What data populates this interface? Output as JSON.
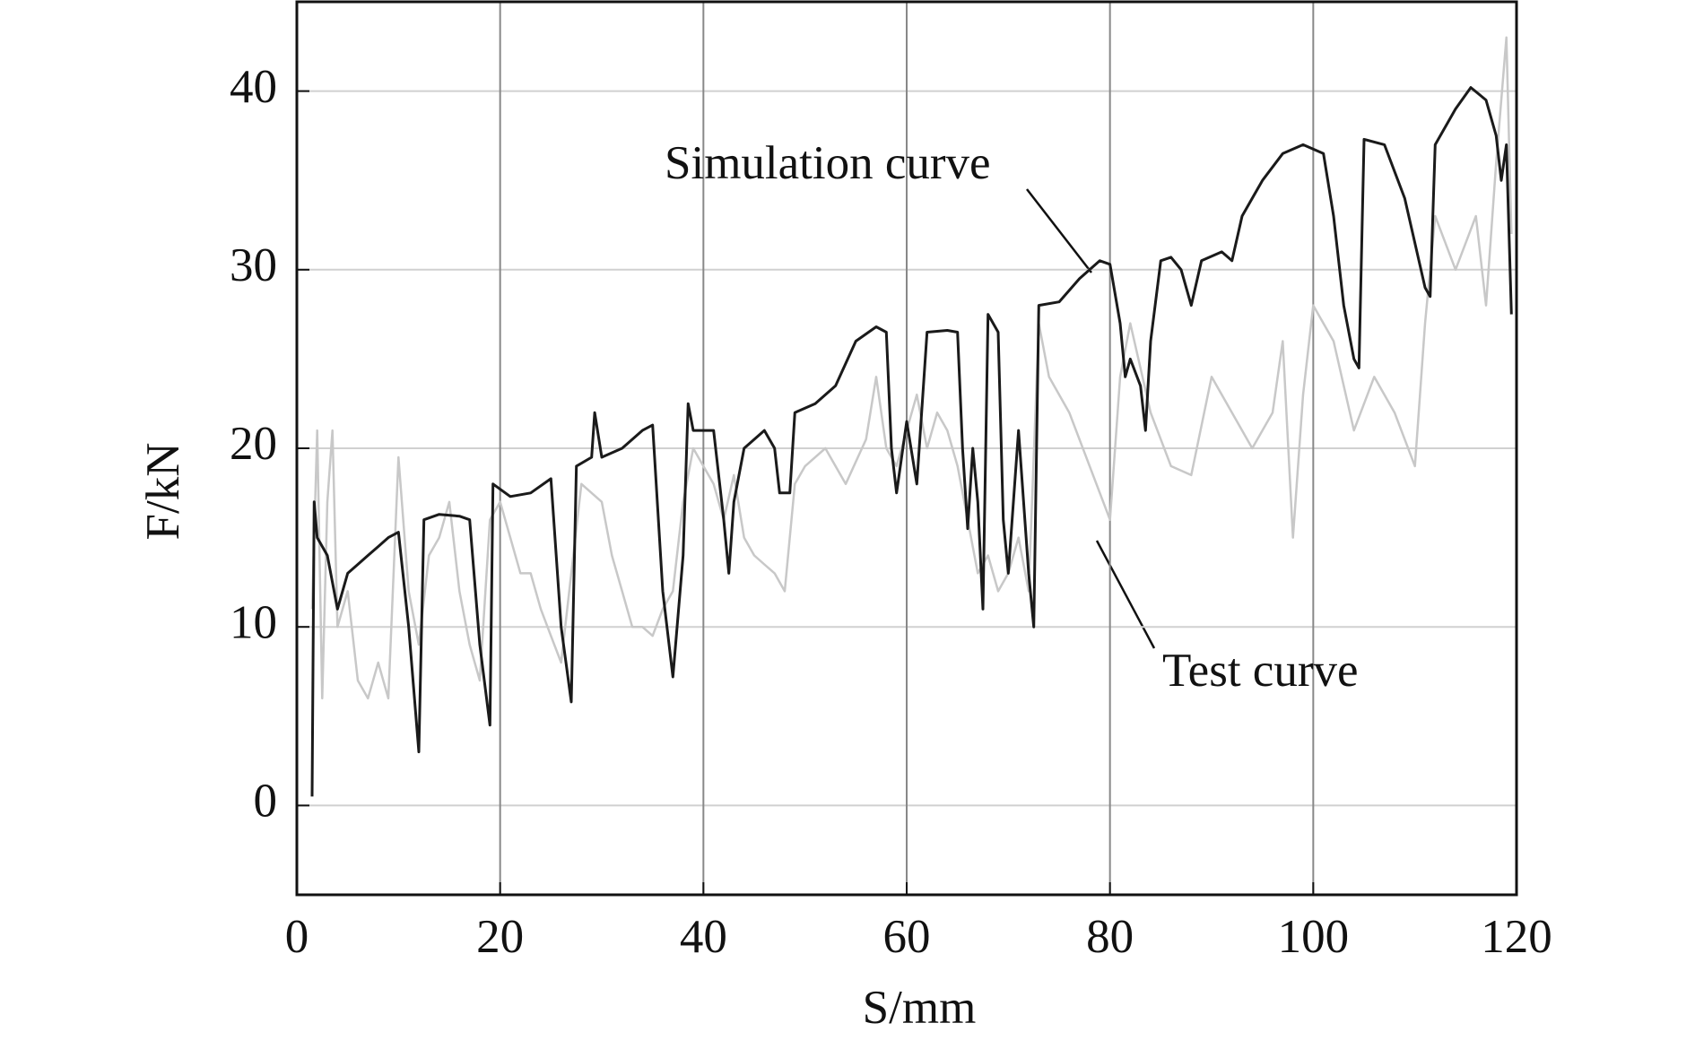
{
  "chart_data": {
    "type": "line",
    "xlabel": "S/mm",
    "ylabel": "F/kN",
    "xlim": [
      0,
      120
    ],
    "ylim": [
      -5,
      45
    ],
    "xticks": [
      0,
      20,
      40,
      60,
      80,
      100,
      120
    ],
    "yticks": [
      0,
      10,
      20,
      30,
      40
    ],
    "grid": true,
    "annotations": [
      {
        "text": "Simulation curve"
      },
      {
        "text": "Test curve"
      }
    ],
    "series": [
      {
        "name": "Test curve",
        "color": "#c8c8c8",
        "x": [
          1.5,
          2,
          2.5,
          3,
          3.5,
          4,
          5,
          6,
          7,
          8,
          9,
          10,
          11,
          12,
          13,
          14,
          15,
          16,
          17,
          18,
          19,
          20,
          21,
          22,
          23,
          24,
          25,
          26,
          27,
          28,
          30,
          31,
          32,
          33,
          34,
          35,
          36,
          37,
          38,
          39,
          40,
          41,
          42,
          43,
          44,
          45,
          46,
          47,
          48,
          49,
          50,
          52,
          54,
          56,
          57,
          58,
          59,
          60,
          61,
          62,
          63,
          64,
          65,
          66,
          67,
          68,
          69,
          70,
          71,
          72,
          73,
          74,
          76,
          78,
          80,
          81,
          82,
          84,
          86,
          88,
          90,
          92,
          94,
          96,
          97,
          98,
          99,
          100,
          102,
          104,
          106,
          108,
          110,
          111,
          112,
          114,
          116,
          117,
          118,
          119,
          119.5
        ],
        "values": [
          11,
          21,
          6,
          17,
          21,
          10,
          12,
          7,
          6,
          8,
          6,
          19.5,
          12,
          9,
          14,
          15,
          17,
          12,
          9,
          7,
          16,
          17,
          15,
          13,
          13,
          11,
          9.5,
          8,
          13,
          18,
          17,
          14,
          12,
          10,
          10,
          9.5,
          11,
          12,
          17,
          20,
          19,
          18,
          16,
          18.5,
          15,
          14,
          13.5,
          13,
          12,
          18,
          19,
          20,
          18,
          20.5,
          24,
          20,
          19,
          21,
          23,
          20,
          22,
          21,
          19,
          16,
          13,
          14,
          12,
          13,
          15,
          12,
          27,
          24,
          22,
          19,
          16,
          24,
          27,
          22,
          19,
          18.5,
          24,
          22,
          20,
          22,
          26,
          15,
          23,
          28,
          26,
          21,
          24,
          22,
          19,
          27,
          33,
          30,
          33,
          28,
          36,
          43,
          32
        ]
      },
      {
        "name": "Simulation curve",
        "color": "#1a1a1a",
        "x": [
          1.5,
          1.7,
          2,
          3,
          4,
          5,
          6,
          7,
          8,
          9,
          10,
          11,
          12,
          12.5,
          14,
          16,
          17,
          18,
          19,
          19.3,
          21,
          23,
          25,
          26,
          27,
          27.5,
          29,
          29.3,
          30,
          32,
          34,
          35,
          36,
          37,
          38,
          38.5,
          39,
          41,
          42,
          42.5,
          43,
          44,
          46,
          47,
          47.5,
          48.5,
          49,
          51,
          53,
          55,
          57,
          58,
          58.5,
          59,
          60,
          61,
          62,
          64,
          65,
          65.5,
          66,
          66.5,
          67,
          67.5,
          68,
          69,
          69.5,
          70,
          71,
          72,
          72.5,
          73,
          75,
          77,
          79,
          80,
          81,
          81.5,
          82,
          83,
          83.5,
          84,
          85,
          86,
          87,
          88,
          89,
          91,
          92,
          93,
          95,
          97,
          99,
          101,
          102,
          103,
          104,
          104.5,
          105,
          107,
          109,
          111,
          111.5,
          112,
          114,
          115.5,
          117,
          118,
          118.5,
          119,
          119.5
        ],
        "values": [
          0.5,
          17,
          15,
          14,
          11,
          13,
          13.5,
          14,
          14.5,
          15,
          15.3,
          10,
          3,
          16,
          16.3,
          16.2,
          16,
          9,
          4.5,
          18,
          17.3,
          17.5,
          18.3,
          10,
          5.8,
          19,
          19.5,
          22,
          19.5,
          20,
          21,
          21.3,
          12,
          7.2,
          14,
          22.5,
          21,
          21,
          16,
          13,
          17,
          20,
          21,
          20,
          17.5,
          17.5,
          22,
          22.5,
          23.5,
          26,
          26.8,
          26.5,
          20,
          17.5,
          21.5,
          18,
          26.5,
          26.6,
          26.5,
          20,
          15.5,
          20,
          17,
          11,
          27.5,
          26.5,
          16,
          13,
          21,
          13,
          10,
          28,
          28.2,
          29.5,
          30.5,
          30.3,
          27,
          24,
          25,
          23.5,
          21,
          26,
          30.5,
          30.7,
          30,
          28,
          30.5,
          31,
          30.5,
          33,
          35,
          36.5,
          37,
          36.5,
          33,
          28,
          25,
          24.5,
          37.3,
          37,
          34,
          29,
          28.5,
          37,
          39,
          40.2,
          39.5,
          37.5,
          35,
          37,
          27.5
        ]
      }
    ]
  }
}
